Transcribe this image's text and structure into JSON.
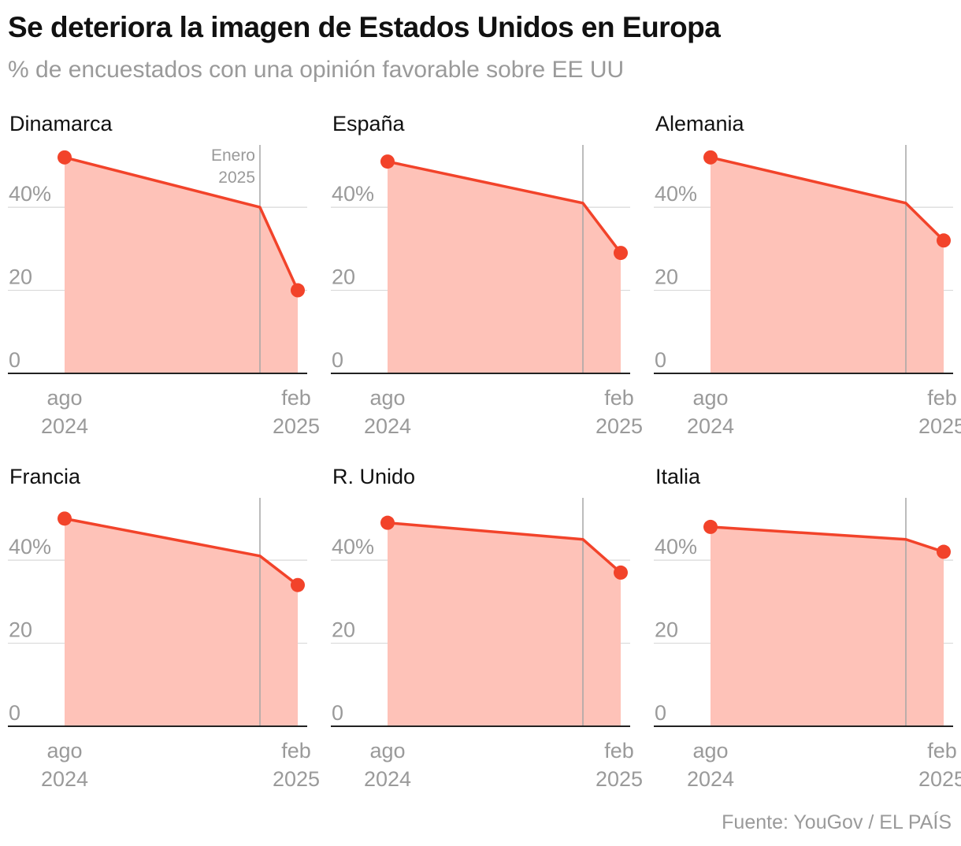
{
  "header": {
    "title": "Se deteriora la imagen de Estados Unidos en Europa",
    "subtitle": "% de encuestados con una opinión favorable sobre EE UU"
  },
  "footer": {
    "source": "Fuente: YouGov / EL PAÍS"
  },
  "colors": {
    "line": "#f2432a",
    "area": "#fec2b8",
    "grid": "#d9d9d9",
    "axis": "#222222",
    "label": "#9a9a9a",
    "marker": "#a6a6a6"
  },
  "axis": {
    "y_ticks": [
      "0",
      "20",
      "40%"
    ],
    "x_start": [
      "ago",
      "2024"
    ],
    "x_end": [
      "feb",
      "2025"
    ]
  },
  "annotation": {
    "marker_date": "2025-01",
    "label_line1": "Enero",
    "label_line2": "2025",
    "shown_in_panel": 0
  },
  "chart_data": [
    {
      "type": "area",
      "title": "Dinamarca",
      "x": [
        "2024-08",
        "2025-01",
        "2025-02"
      ],
      "values": [
        52,
        40,
        20
      ],
      "ylim": [
        0,
        55
      ],
      "ylabel": "%"
    },
    {
      "type": "area",
      "title": "España",
      "x": [
        "2024-08",
        "2025-01",
        "2025-02"
      ],
      "values": [
        51,
        41,
        29
      ],
      "ylim": [
        0,
        55
      ],
      "ylabel": "%"
    },
    {
      "type": "area",
      "title": "Alemania",
      "x": [
        "2024-08",
        "2025-01",
        "2025-02"
      ],
      "values": [
        52,
        41,
        32
      ],
      "ylim": [
        0,
        55
      ],
      "ylabel": "%"
    },
    {
      "type": "area",
      "title": "Francia",
      "x": [
        "2024-08",
        "2025-01",
        "2025-02"
      ],
      "values": [
        50,
        41,
        34
      ],
      "ylim": [
        0,
        55
      ],
      "ylabel": "%"
    },
    {
      "type": "area",
      "title": "R. Unido",
      "x": [
        "2024-08",
        "2025-01",
        "2025-02"
      ],
      "values": [
        49,
        45,
        37
      ],
      "ylim": [
        0,
        55
      ],
      "ylabel": "%"
    },
    {
      "type": "area",
      "title": "Italia",
      "x": [
        "2024-08",
        "2025-01",
        "2025-02"
      ],
      "values": [
        48,
        45,
        42
      ],
      "ylim": [
        0,
        55
      ],
      "ylabel": "%"
    }
  ]
}
